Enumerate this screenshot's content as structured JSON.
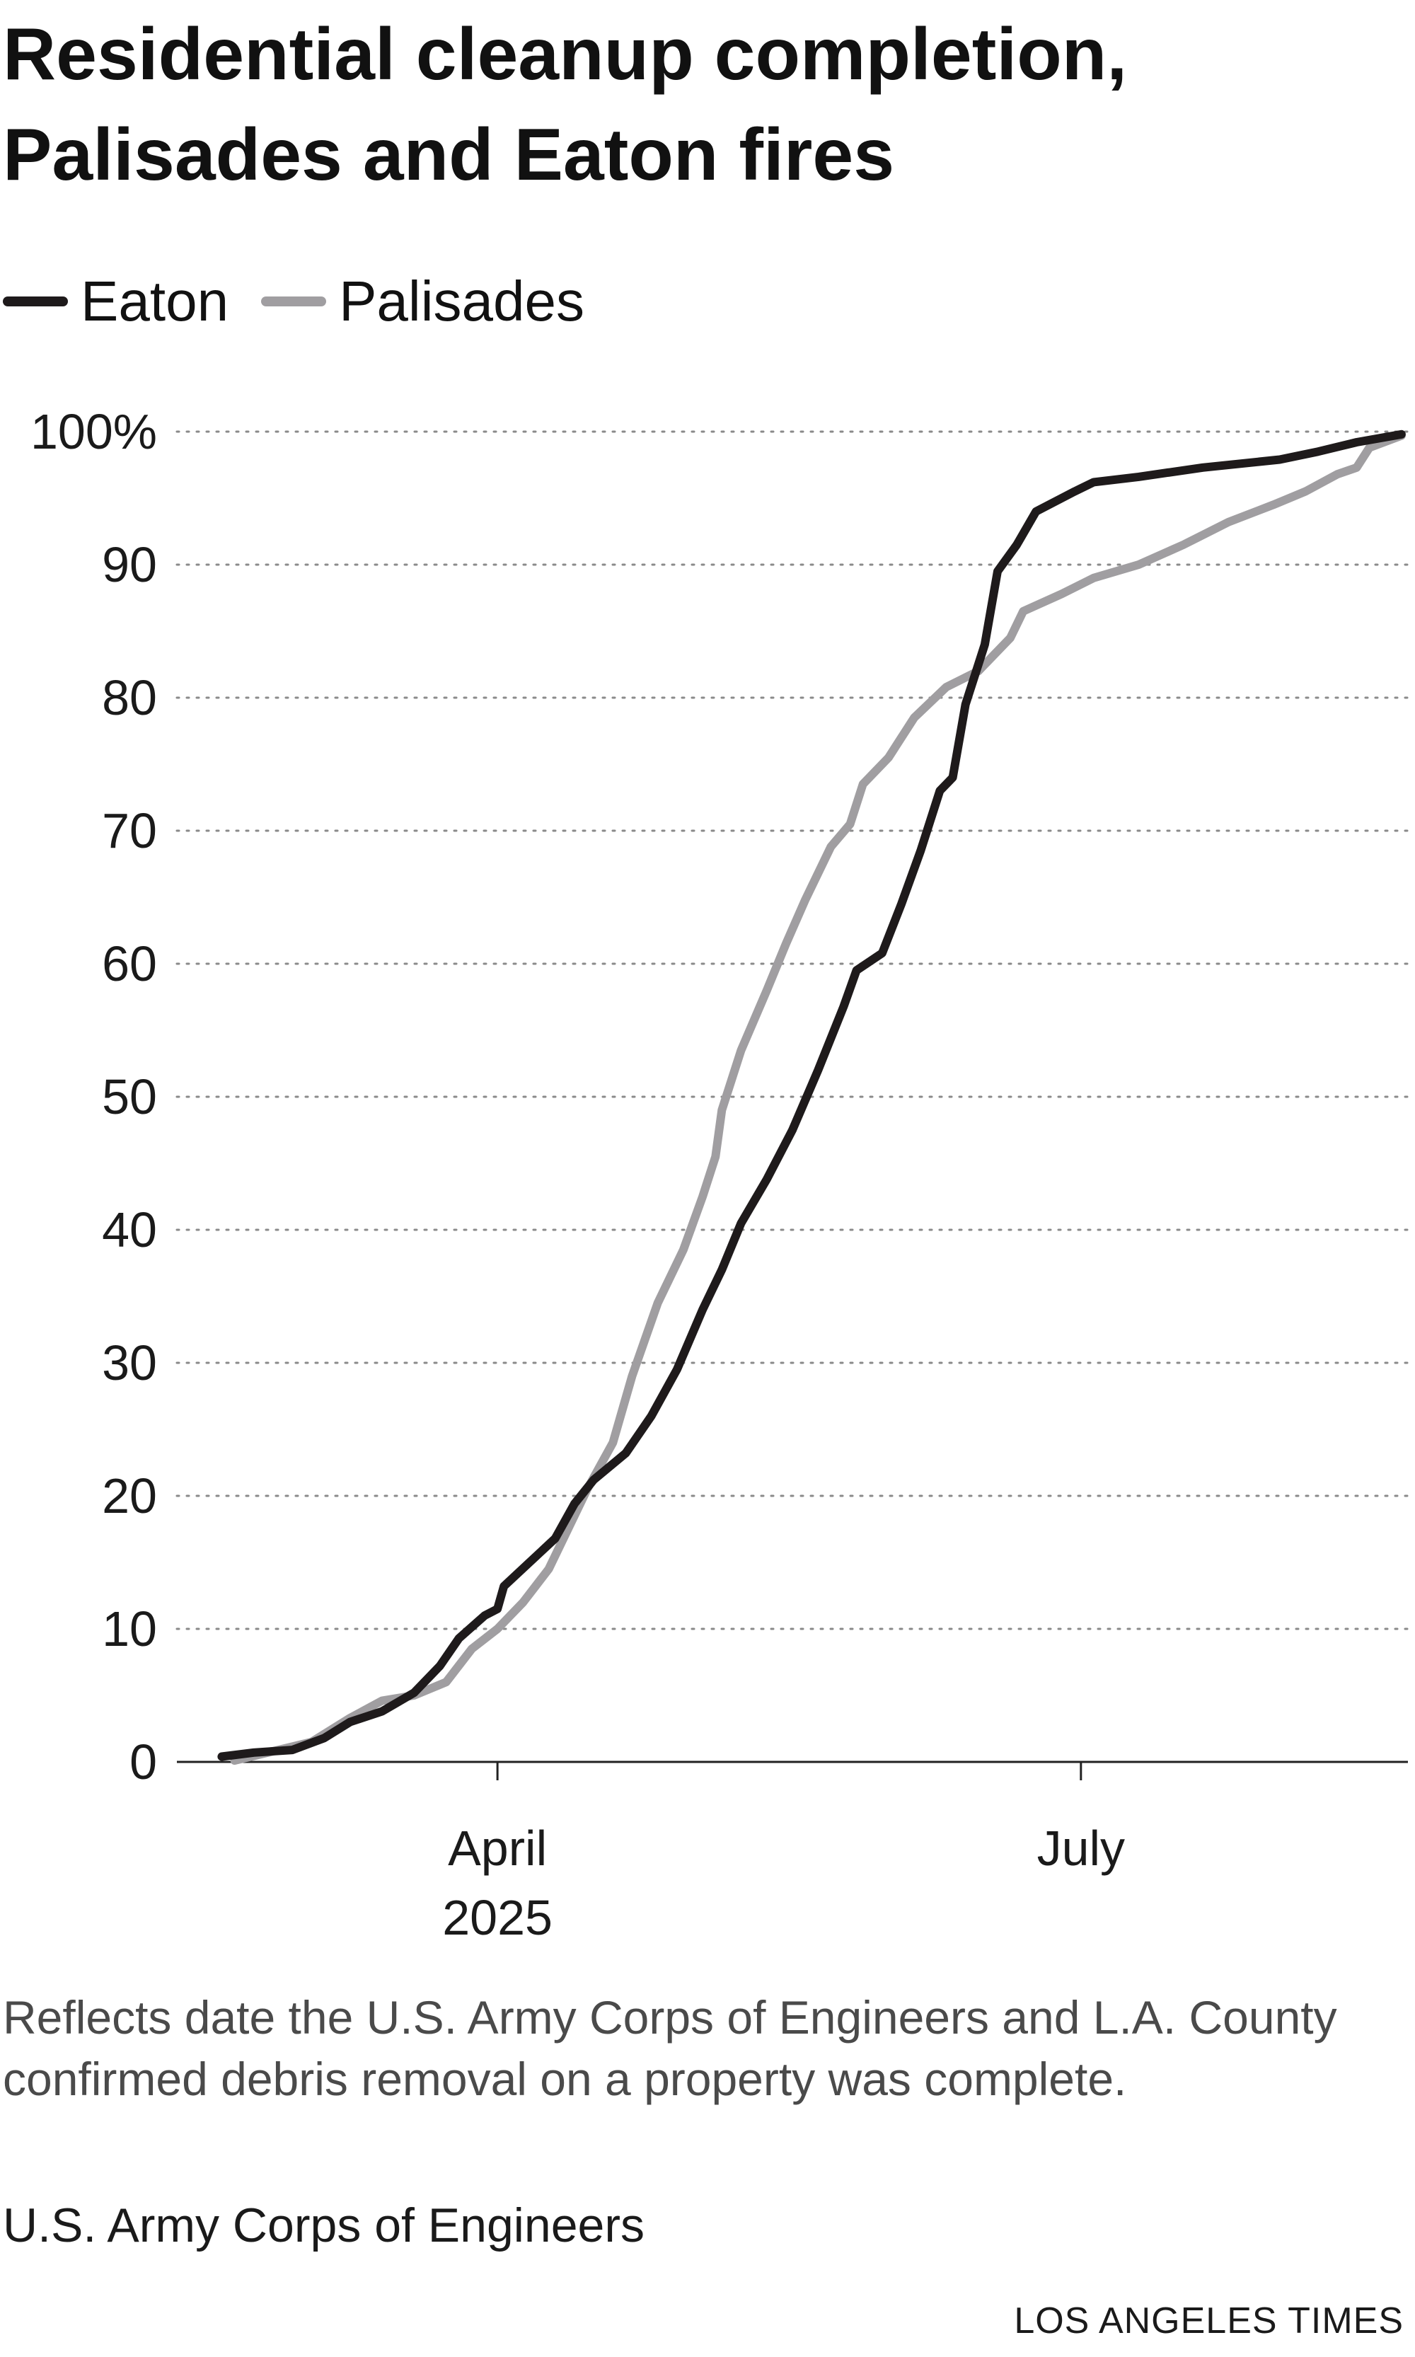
{
  "chart_data": {
    "type": "line",
    "title": "Residential cleanup completion, Palisades and Eaton fires",
    "ylim": [
      0,
      100
    ],
    "y_ticks": [
      0,
      10,
      20,
      30,
      40,
      50,
      60,
      70,
      80,
      90,
      100
    ],
    "y_tick_labels": [
      "0",
      "10",
      "20",
      "30",
      "40",
      "50",
      "60",
      "70",
      "80",
      "90",
      "100%"
    ],
    "x_range": [
      "2025-02-10",
      "2025-08-21"
    ],
    "x_ticks": [
      {
        "date": "2025-04-01",
        "label": "April",
        "sublabel": "2025"
      },
      {
        "date": "2025-07-01",
        "label": "July",
        "sublabel": ""
      }
    ],
    "grid": "horizontal dotted",
    "legend_position": "top-left",
    "series": [
      {
        "name": "Eaton",
        "color": "#1e1a1b",
        "points": [
          [
            "2025-02-17",
            0.4
          ],
          [
            "2025-02-22",
            0.7
          ],
          [
            "2025-02-28",
            0.9
          ],
          [
            "2025-03-05",
            1.8
          ],
          [
            "2025-03-09",
            3.0
          ],
          [
            "2025-03-14",
            3.8
          ],
          [
            "2025-03-19",
            5.2
          ],
          [
            "2025-03-23",
            7.2
          ],
          [
            "2025-03-26",
            9.3
          ],
          [
            "2025-03-30",
            11.0
          ],
          [
            "2025-04-01",
            11.5
          ],
          [
            "2025-04-02",
            13.2
          ],
          [
            "2025-04-06",
            15.0
          ],
          [
            "2025-04-10",
            16.8
          ],
          [
            "2025-04-13",
            19.4
          ],
          [
            "2025-04-16",
            21.2
          ],
          [
            "2025-04-21",
            23.2
          ],
          [
            "2025-04-25",
            26.0
          ],
          [
            "2025-04-29",
            29.5
          ],
          [
            "2025-05-03",
            34.0
          ],
          [
            "2025-05-06",
            37.0
          ],
          [
            "2025-05-09",
            40.5
          ],
          [
            "2025-05-13",
            43.8
          ],
          [
            "2025-05-17",
            47.5
          ],
          [
            "2025-05-21",
            52.0
          ],
          [
            "2025-05-25",
            56.8
          ],
          [
            "2025-05-27",
            59.5
          ],
          [
            "2025-05-31",
            60.8
          ],
          [
            "2025-06-03",
            64.5
          ],
          [
            "2025-06-06",
            68.5
          ],
          [
            "2025-06-09",
            73.0
          ],
          [
            "2025-06-11",
            74.0
          ],
          [
            "2025-06-13",
            79.5
          ],
          [
            "2025-06-16",
            84.0
          ],
          [
            "2025-06-18",
            89.5
          ],
          [
            "2025-06-21",
            91.5
          ],
          [
            "2025-06-24",
            94.0
          ],
          [
            "2025-06-30",
            95.5
          ],
          [
            "2025-07-03",
            96.2
          ],
          [
            "2025-07-10",
            96.6
          ],
          [
            "2025-07-20",
            97.3
          ],
          [
            "2025-08-01",
            97.9
          ],
          [
            "2025-08-07",
            98.5
          ],
          [
            "2025-08-13",
            99.2
          ],
          [
            "2025-08-20",
            99.8
          ]
        ]
      },
      {
        "name": "Palisades",
        "color": "#a09ea1",
        "points": [
          [
            "2025-02-19",
            0.1
          ],
          [
            "2025-02-25",
            0.8
          ],
          [
            "2025-03-03",
            1.5
          ],
          [
            "2025-03-09",
            3.3
          ],
          [
            "2025-03-14",
            4.6
          ],
          [
            "2025-03-19",
            5.0
          ],
          [
            "2025-03-24",
            6.0
          ],
          [
            "2025-03-28",
            8.5
          ],
          [
            "2025-04-01",
            10.0
          ],
          [
            "2025-04-05",
            12.0
          ],
          [
            "2025-04-09",
            14.5
          ],
          [
            "2025-04-12",
            17.5
          ],
          [
            "2025-04-15",
            20.5
          ],
          [
            "2025-04-19",
            24.0
          ],
          [
            "2025-04-22",
            29.0
          ],
          [
            "2025-04-26",
            34.5
          ],
          [
            "2025-04-30",
            38.5
          ],
          [
            "2025-05-03",
            42.5
          ],
          [
            "2025-05-05",
            45.5
          ],
          [
            "2025-05-06",
            49.0
          ],
          [
            "2025-05-09",
            53.5
          ],
          [
            "2025-05-13",
            58.0
          ],
          [
            "2025-05-16",
            61.5
          ],
          [
            "2025-05-19",
            64.8
          ],
          [
            "2025-05-23",
            68.8
          ],
          [
            "2025-05-26",
            70.5
          ],
          [
            "2025-05-28",
            73.5
          ],
          [
            "2025-06-01",
            75.5
          ],
          [
            "2025-06-05",
            78.5
          ],
          [
            "2025-06-10",
            80.8
          ],
          [
            "2025-06-15",
            82.0
          ],
          [
            "2025-06-20",
            84.5
          ],
          [
            "2025-06-22",
            86.5
          ],
          [
            "2025-06-28",
            87.8
          ],
          [
            "2025-07-03",
            89.0
          ],
          [
            "2025-07-10",
            90.0
          ],
          [
            "2025-07-17",
            91.5
          ],
          [
            "2025-07-24",
            93.2
          ],
          [
            "2025-07-31",
            94.5
          ],
          [
            "2025-08-05",
            95.5
          ],
          [
            "2025-08-10",
            96.8
          ],
          [
            "2025-08-13",
            97.3
          ],
          [
            "2025-08-15",
            98.8
          ],
          [
            "2025-08-20",
            99.7
          ]
        ]
      }
    ]
  },
  "note": "Reflects date the U.S. Army Corps of Engineers and L.A. County confirmed debris removal on a property was complete.",
  "source": "U.S. Army Corps of Engineers",
  "credit": "LOS ANGELES TIMES"
}
